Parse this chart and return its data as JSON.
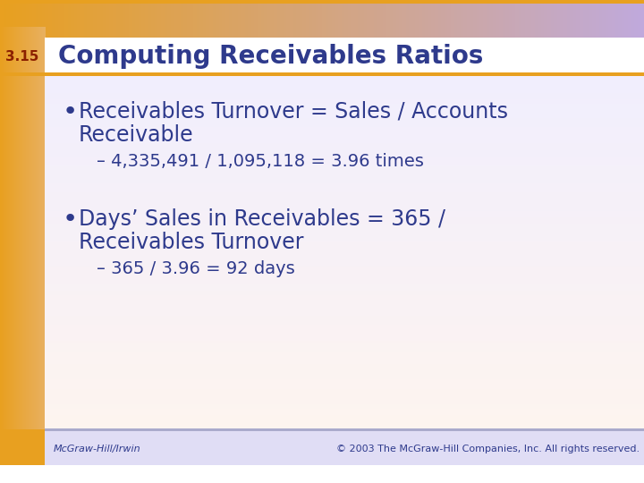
{
  "slide_number": "3.15",
  "title": "Computing Receivables Ratios",
  "title_color": "#2E3A8C",
  "slide_number_color": "#8B2000",
  "header_bar_color": "#E8A020",
  "bullet1_line1": "Receivables Turnover = Sales / Accounts",
  "bullet1_line2": "Receivable",
  "bullet1_sub": "– 4,335,491 / 1,095,118 = 3.96 times",
  "bullet2_line1": "Days’ Sales in Receivables = 365 /",
  "bullet2_line2": "Receivables Turnover",
  "bullet2_sub": "– 365 / 3.96 = 92 days",
  "bullet_color": "#2E3A8C",
  "footer_left": "McGraw-Hill/Irwin",
  "footer_right": "© 2003 The McGraw-Hill Companies, Inc. All rights reserved.",
  "footer_color": "#2E3A8C",
  "title_fontsize": 20,
  "slide_number_fontsize": 11,
  "bullet_main_fontsize": 17,
  "bullet_sub_fontsize": 14,
  "footer_fontsize": 8,
  "bg_left_color": "#E8A020",
  "bg_top_right_color": "#C0AADD",
  "bg_mid_color": "#F0EEFF",
  "bg_bottom_color": "#FFE8D0",
  "header_white_bg": "#FFFFFF",
  "footer_bg": "#D8D4EE"
}
